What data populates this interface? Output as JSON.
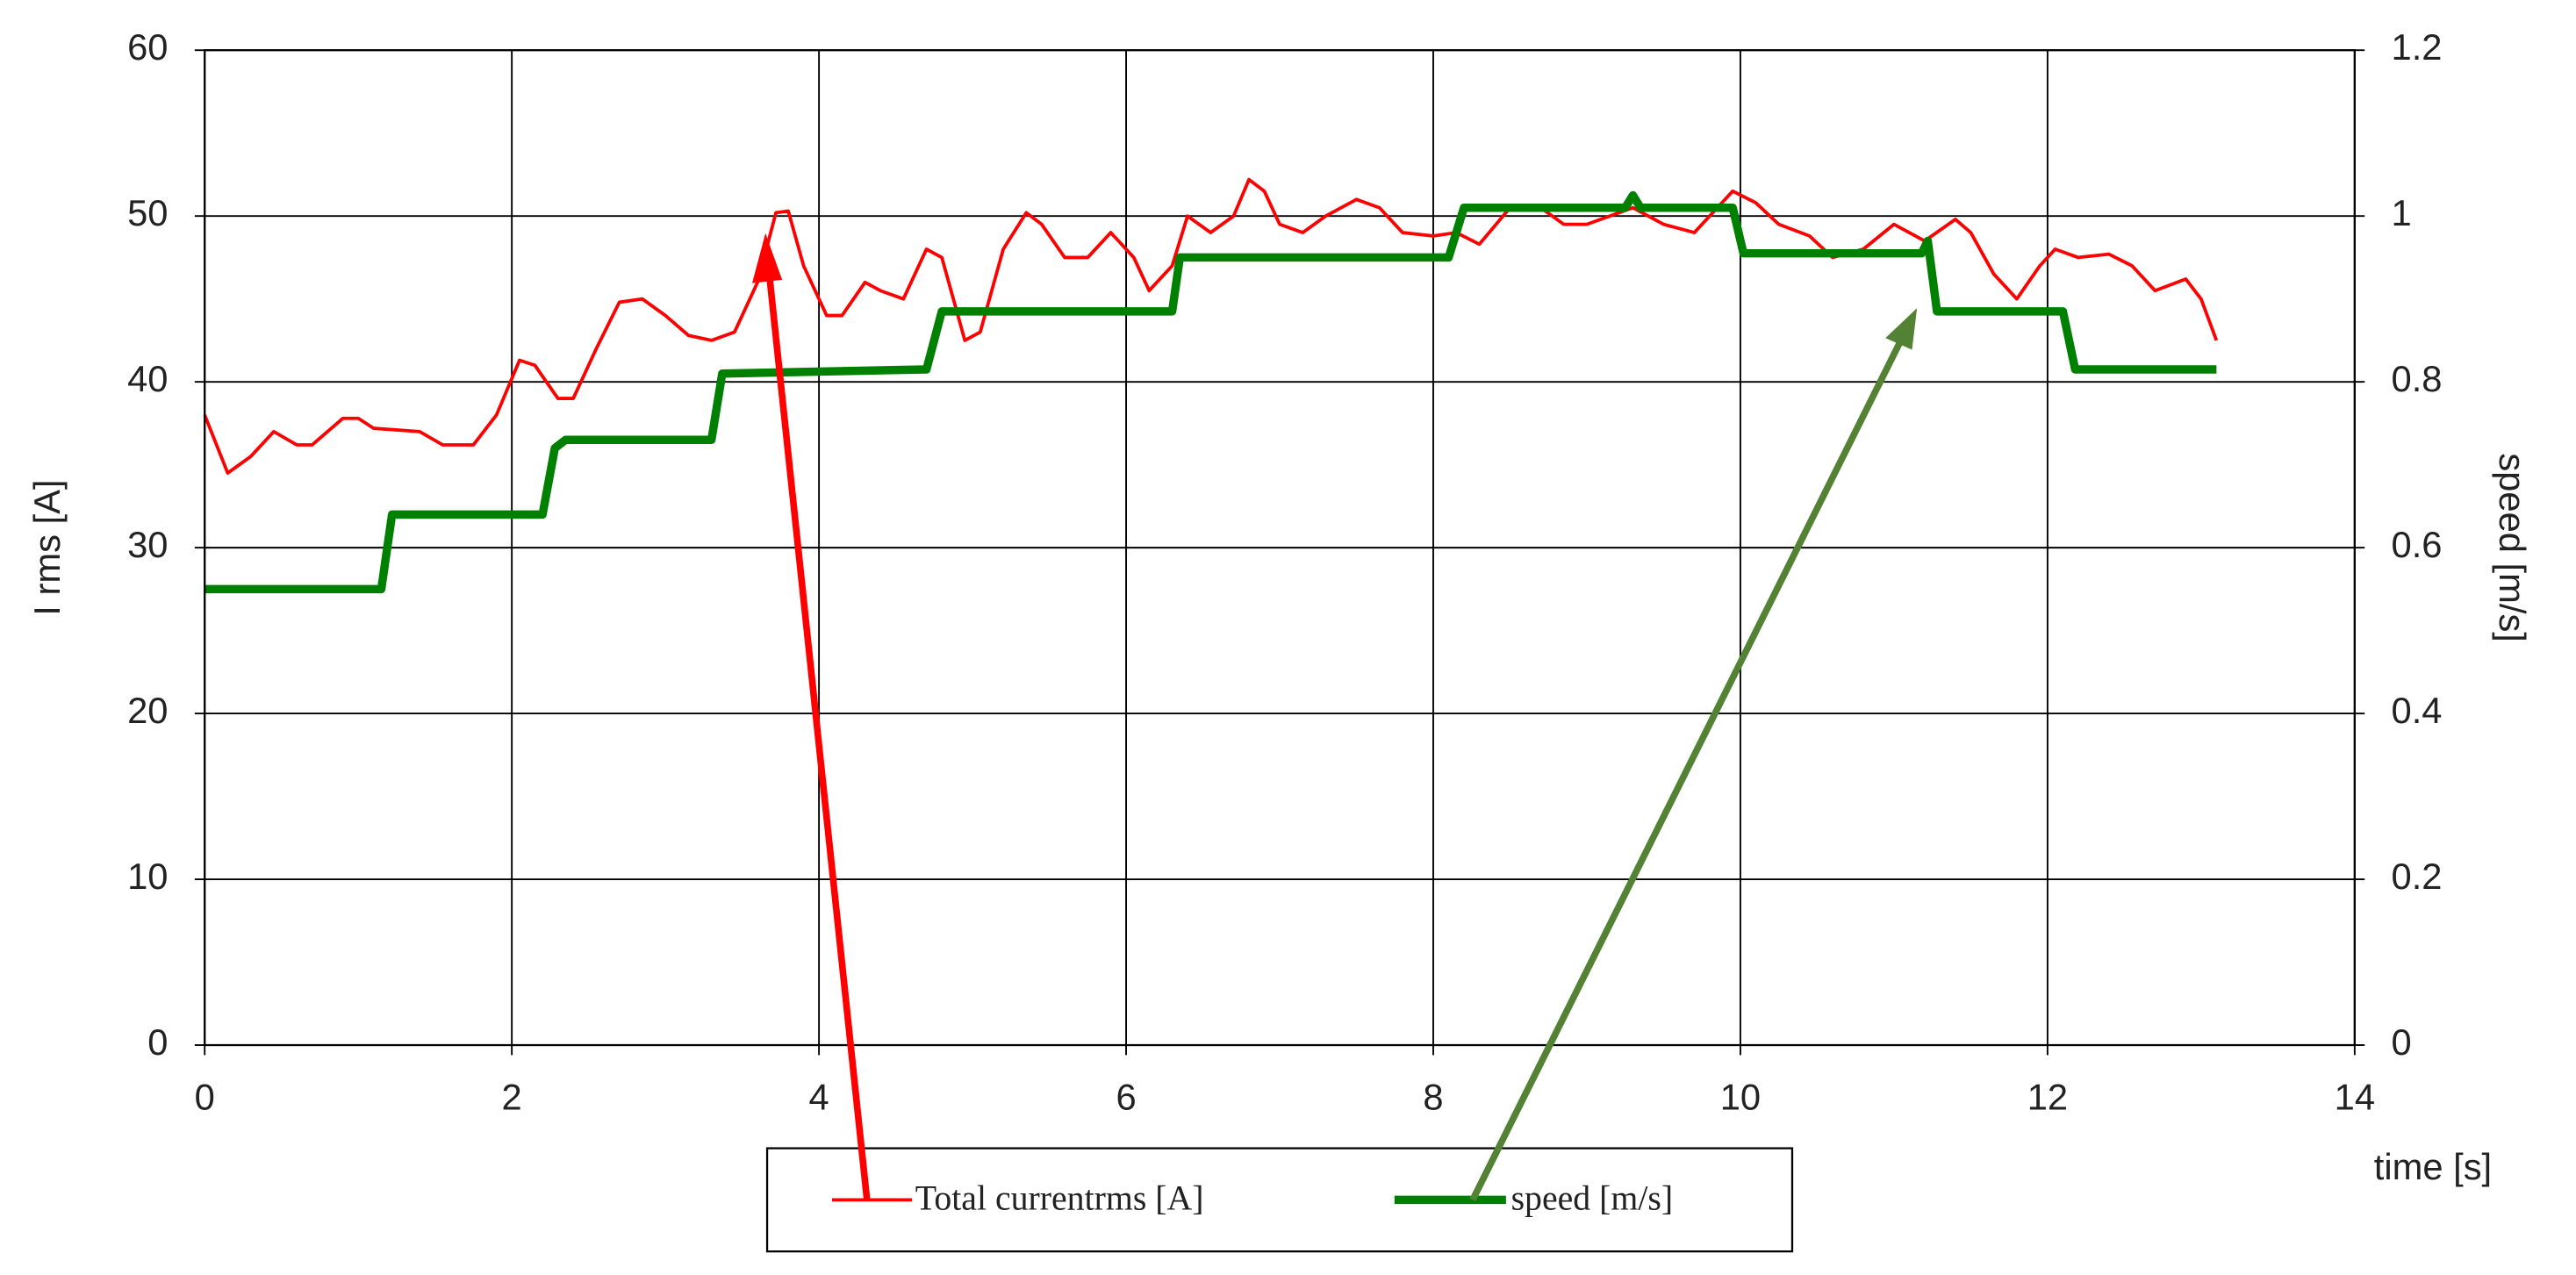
{
  "chart_data": {
    "type": "line",
    "x_label": "time [s]",
    "y_label": "I rms [A]",
    "y2_label": "speed [m/s]",
    "xlim": [
      0,
      14
    ],
    "xticks": [
      0,
      2,
      4,
      6,
      8,
      10,
      12,
      14
    ],
    "ylim": [
      0,
      60
    ],
    "yticks": [
      0,
      10,
      20,
      30,
      40,
      50,
      60
    ],
    "y2lim": [
      0,
      1.2
    ],
    "y2ticks": [
      0,
      0.2,
      0.4,
      0.6,
      0.8,
      1,
      1.2
    ],
    "grid": true,
    "series": [
      {
        "name": "Total currentrms [A]",
        "color": "#ff0000",
        "axis": "y",
        "x": [
          0,
          0.15,
          0.3,
          0.45,
          0.6,
          0.7,
          0.9,
          1.0,
          1.1,
          1.4,
          1.55,
          1.75,
          1.9,
          2.05,
          2.15,
          2.3,
          2.4,
          2.55,
          2.7,
          2.85,
          3.0,
          3.15,
          3.3,
          3.45,
          3.6,
          3.72,
          3.8,
          3.9,
          4.05,
          4.15,
          4.3,
          4.4,
          4.55,
          4.7,
          4.8,
          4.95,
          5.05,
          5.2,
          5.35,
          5.45,
          5.6,
          5.75,
          5.9,
          6.05,
          6.15,
          6.3,
          6.4,
          6.55,
          6.7,
          6.8,
          6.9,
          7.0,
          7.15,
          7.3,
          7.5,
          7.65,
          7.8,
          8.0,
          8.15,
          8.3,
          8.5,
          8.7,
          8.85,
          9.0,
          9.3,
          9.5,
          9.7,
          9.85,
          9.95,
          10.1,
          10.25,
          10.45,
          10.6,
          10.8,
          11.0,
          11.2,
          11.4,
          11.5,
          11.65,
          11.8,
          11.95,
          12.05,
          12.2,
          12.4,
          12.55,
          12.7,
          12.9,
          13.0,
          13.1
        ],
        "values": [
          38,
          34.5,
          35.5,
          37,
          36.2,
          36.2,
          37.8,
          37.8,
          37.2,
          37,
          36.2,
          36.2,
          38,
          41.3,
          41,
          39,
          39,
          42,
          44.8,
          45,
          44,
          42.8,
          42.5,
          43,
          46,
          50.2,
          50.3,
          47,
          44,
          44,
          46,
          45.5,
          45,
          48,
          47.5,
          42.5,
          43,
          48,
          50.2,
          49.5,
          47.5,
          47.5,
          49,
          47.5,
          45.5,
          47,
          50,
          49,
          50,
          52.2,
          51.5,
          49.5,
          49,
          50,
          51,
          50.5,
          49,
          48.8,
          49,
          48.3,
          50.5,
          50.5,
          49.5,
          49.5,
          50.5,
          49.5,
          49,
          50.5,
          51.5,
          50.8,
          49.5,
          48.8,
          47.5,
          48,
          49.5,
          48.5,
          49.8,
          49,
          46.5,
          45,
          47,
          48,
          47.5,
          47.7,
          47,
          45.5,
          46.2,
          45,
          42.5
        ]
      },
      {
        "name": "speed [m/s]",
        "color": "#008000",
        "axis": "y2",
        "x": [
          0,
          1.15,
          1.22,
          2.2,
          2.28,
          2.35,
          3.3,
          3.37,
          4.7,
          4.8,
          6.3,
          6.35,
          8.1,
          8.2,
          9.25,
          9.3,
          9.35,
          9.95,
          10.02,
          11.18,
          11.22,
          11.28,
          12.1,
          12.18,
          13.1
        ],
        "values": [
          0.55,
          0.55,
          0.64,
          0.64,
          0.72,
          0.73,
          0.73,
          0.81,
          0.815,
          0.885,
          0.885,
          0.95,
          0.95,
          1.01,
          1.01,
          1.025,
          1.01,
          1.01,
          0.955,
          0.955,
          0.97,
          0.885,
          0.885,
          0.815,
          0.815
        ]
      }
    ]
  }
}
